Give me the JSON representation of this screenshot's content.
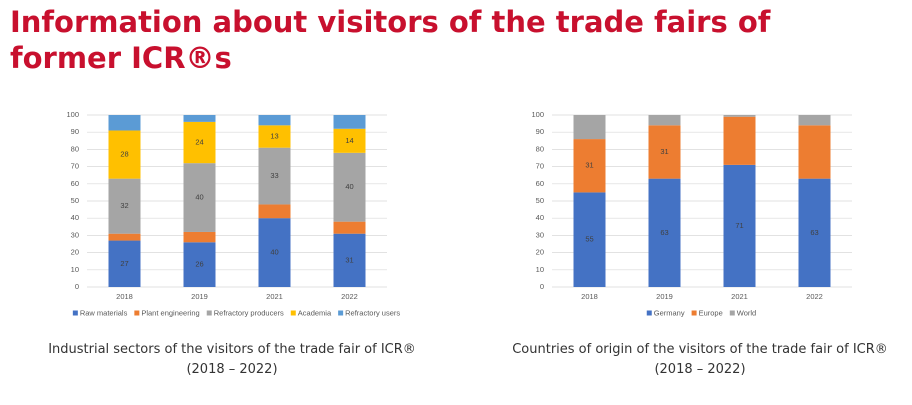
{
  "page_title": "Information about visitors of the trade fairs of former ICR®s",
  "chart_data": [
    {
      "type": "stacked_bar",
      "caption": [
        "Industrial sectors of the visitors of the trade fair of ICR®",
        "(2018 – 2022)"
      ],
      "categories": [
        "2018",
        "2019",
        "2021",
        "2022"
      ],
      "ylim": [
        0,
        100
      ],
      "yticks": [
        0,
        10,
        20,
        30,
        40,
        50,
        60,
        70,
        80,
        90,
        100
      ],
      "grid": true,
      "legend": "bottom",
      "series": [
        {
          "name": "Raw materials",
          "color": "#4472c4",
          "values": [
            27,
            26,
            40,
            31
          ],
          "show_labels": [
            true,
            true,
            true,
            true
          ]
        },
        {
          "name": "Plant engineering",
          "color": "#ed7d31",
          "values": [
            4,
            6,
            8,
            7
          ],
          "show_labels": [
            false,
            false,
            false,
            false
          ]
        },
        {
          "name": "Refractory producers",
          "color": "#a5a5a5",
          "values": [
            32,
            40,
            33,
            40
          ],
          "show_labels": [
            true,
            true,
            true,
            true
          ]
        },
        {
          "name": "Academia",
          "color": "#ffc000",
          "values": [
            28,
            24,
            13,
            14
          ],
          "show_labels": [
            true,
            true,
            true,
            true
          ]
        },
        {
          "name": "Refractory users",
          "color": "#5b9bd5",
          "values": [
            9,
            4,
            6,
            8
          ],
          "show_labels": [
            false,
            false,
            false,
            false
          ]
        }
      ]
    },
    {
      "type": "stacked_bar",
      "caption": [
        "Countries of origin of the visitors of the trade fair of ICR®",
        "(2018 – 2022)"
      ],
      "categories": [
        "2018",
        "2019",
        "2021",
        "2022"
      ],
      "ylim": [
        0,
        100
      ],
      "yticks": [
        0,
        10,
        20,
        30,
        40,
        50,
        60,
        70,
        80,
        90,
        100
      ],
      "grid": true,
      "legend": "bottom",
      "series": [
        {
          "name": "Germany",
          "color": "#4472c4",
          "values": [
            55,
            63,
            71,
            63
          ],
          "show_labels": [
            true,
            true,
            true,
            true
          ]
        },
        {
          "name": "Europe",
          "color": "#ed7d31",
          "values": [
            31,
            31,
            28,
            31
          ],
          "show_labels": [
            true,
            true,
            false,
            false
          ]
        },
        {
          "name": "World",
          "color": "#a5a5a5",
          "values": [
            14,
            6,
            1,
            6
          ],
          "show_labels": [
            false,
            false,
            false,
            false
          ]
        }
      ]
    }
  ]
}
